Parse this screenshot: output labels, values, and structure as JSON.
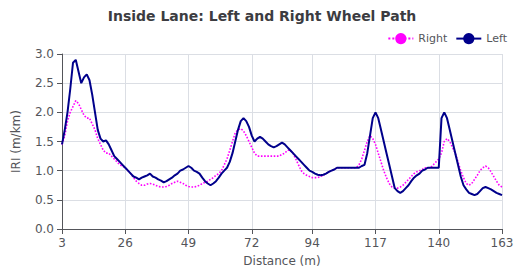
{
  "chart_data": {
    "type": "line",
    "title": "Inside Lane: Left and Right Wheel Path",
    "x_label": "Distance (m)",
    "y_label": "IRI (m/km)",
    "xlim": [
      3,
      163
    ],
    "ylim": [
      0,
      3
    ],
    "xticks": [
      3,
      26,
      49,
      72,
      94,
      117,
      140,
      163
    ],
    "yticks": [
      {
        "value": 0,
        "label": "0.0"
      },
      0.5,
      {
        "value": 1,
        "label": "1.0"
      },
      1.5,
      {
        "value": 2,
        "label": "2.0"
      },
      2.5,
      {
        "value": 3,
        "label": "3.0"
      }
    ],
    "grid": true,
    "legend": "upper right",
    "x": [
      3,
      4,
      5,
      6,
      7,
      8,
      9,
      10,
      11,
      12,
      13,
      14,
      15,
      16,
      17,
      18,
      19,
      20,
      21,
      22,
      23,
      24,
      25,
      26,
      27,
      28,
      29,
      30,
      31,
      32,
      33,
      34,
      35,
      36,
      37,
      38,
      39,
      40,
      41,
      42,
      43,
      44,
      45,
      46,
      47,
      48,
      49,
      50,
      51,
      52,
      53,
      54,
      55,
      56,
      57,
      58,
      59,
      60,
      61,
      62,
      63,
      64,
      65,
      66,
      67,
      68,
      69,
      70,
      71,
      72,
      73,
      74,
      75,
      76,
      77,
      78,
      79,
      80,
      81,
      82,
      83,
      84,
      85,
      86,
      87,
      88,
      89,
      90,
      91,
      92,
      93,
      94,
      95,
      96,
      97,
      98,
      99,
      100,
      101,
      102,
      103,
      104,
      105,
      106,
      107,
      108,
      109,
      110,
      111,
      112,
      113,
      114,
      115,
      116,
      117,
      118,
      119,
      120,
      121,
      122,
      123,
      124,
      125,
      126,
      127,
      128,
      129,
      130,
      131,
      132,
      133,
      134,
      135,
      136,
      137,
      138,
      139,
      140,
      141,
      142,
      143,
      144,
      145,
      146,
      147,
      148,
      149,
      150,
      151,
      152,
      153,
      154,
      155,
      156,
      157,
      158,
      159,
      160,
      161,
      162,
      163
    ],
    "series": [
      {
        "name": "Right",
        "color": "#FF00FF",
        "line_style": "dotted",
        "values": [
          1.45,
          1.6,
          1.85,
          2.0,
          2.1,
          2.2,
          2.15,
          2.05,
          1.95,
          1.9,
          1.9,
          1.8,
          1.7,
          1.55,
          1.45,
          1.35,
          1.3,
          1.3,
          1.25,
          1.2,
          1.15,
          1.1,
          1.08,
          1.05,
          1.0,
          0.95,
          0.88,
          0.82,
          0.78,
          0.75,
          0.75,
          0.77,
          0.78,
          0.77,
          0.75,
          0.73,
          0.72,
          0.72,
          0.73,
          0.75,
          0.78,
          0.8,
          0.82,
          0.8,
          0.78,
          0.75,
          0.73,
          0.72,
          0.72,
          0.73,
          0.75,
          0.78,
          0.8,
          0.82,
          0.85,
          0.88,
          0.92,
          0.95,
          1.0,
          1.1,
          1.2,
          1.35,
          1.5,
          1.65,
          1.7,
          1.72,
          1.68,
          1.6,
          1.5,
          1.4,
          1.3,
          1.25,
          1.25,
          1.25,
          1.25,
          1.25,
          1.25,
          1.25,
          1.25,
          1.25,
          1.28,
          1.3,
          1.35,
          1.35,
          1.3,
          1.2,
          1.1,
          1.0,
          0.95,
          0.92,
          0.9,
          0.88,
          0.88,
          0.88,
          0.9,
          0.92,
          0.95,
          0.98,
          1.0,
          1.02,
          1.05,
          1.05,
          1.05,
          1.05,
          1.05,
          1.05,
          1.05,
          1.05,
          1.1,
          1.2,
          1.35,
          1.5,
          1.6,
          1.55,
          1.45,
          1.3,
          1.15,
          1.0,
          0.88,
          0.78,
          0.72,
          0.7,
          0.7,
          0.72,
          0.75,
          0.8,
          0.85,
          0.9,
          0.95,
          0.98,
          1.0,
          1.02,
          1.05,
          1.05,
          1.05,
          1.1,
          1.15,
          1.2,
          1.3,
          1.5,
          1.55,
          1.5,
          1.4,
          1.3,
          1.15,
          1.0,
          0.88,
          0.78,
          0.75,
          0.78,
          0.85,
          0.92,
          1.0,
          1.05,
          1.08,
          1.05,
          0.98,
          0.9,
          0.82,
          0.75,
          0.72
        ]
      },
      {
        "name": "Left",
        "color": "#00008B",
        "line_style": "solid",
        "values": [
          1.45,
          1.7,
          2.0,
          2.4,
          2.85,
          2.9,
          2.7,
          2.5,
          2.6,
          2.65,
          2.55,
          2.3,
          2.0,
          1.7,
          1.55,
          1.5,
          1.52,
          1.45,
          1.35,
          1.25,
          1.2,
          1.15,
          1.1,
          1.05,
          1.0,
          0.95,
          0.9,
          0.88,
          0.85,
          0.88,
          0.9,
          0.92,
          0.95,
          0.9,
          0.88,
          0.85,
          0.83,
          0.8,
          0.82,
          0.85,
          0.88,
          0.92,
          0.95,
          1.0,
          1.02,
          1.05,
          1.08,
          1.05,
          1.0,
          0.98,
          0.95,
          0.88,
          0.82,
          0.78,
          0.75,
          0.78,
          0.82,
          0.88,
          0.95,
          1.0,
          1.05,
          1.15,
          1.3,
          1.5,
          1.7,
          1.85,
          1.9,
          1.85,
          1.75,
          1.6,
          1.5,
          1.55,
          1.58,
          1.55,
          1.5,
          1.45,
          1.42,
          1.4,
          1.42,
          1.45,
          1.48,
          1.45,
          1.4,
          1.35,
          1.3,
          1.25,
          1.2,
          1.15,
          1.1,
          1.05,
          1.0,
          0.98,
          0.95,
          0.93,
          0.92,
          0.93,
          0.95,
          0.98,
          1.0,
          1.02,
          1.05,
          1.05,
          1.05,
          1.05,
          1.05,
          1.05,
          1.05,
          1.05,
          1.05,
          1.08,
          1.1,
          1.3,
          1.6,
          1.9,
          2.0,
          1.9,
          1.7,
          1.5,
          1.3,
          1.1,
          0.9,
          0.7,
          0.65,
          0.62,
          0.65,
          0.7,
          0.75,
          0.82,
          0.88,
          0.92,
          0.95,
          1.0,
          1.02,
          1.05,
          1.05,
          1.05,
          1.05,
          1.05,
          1.9,
          2.0,
          1.9,
          1.7,
          1.5,
          1.3,
          1.1,
          0.9,
          0.75,
          0.68,
          0.62,
          0.6,
          0.58,
          0.6,
          0.65,
          0.7,
          0.72,
          0.7,
          0.68,
          0.65,
          0.62,
          0.6,
          0.58
        ]
      }
    ]
  }
}
